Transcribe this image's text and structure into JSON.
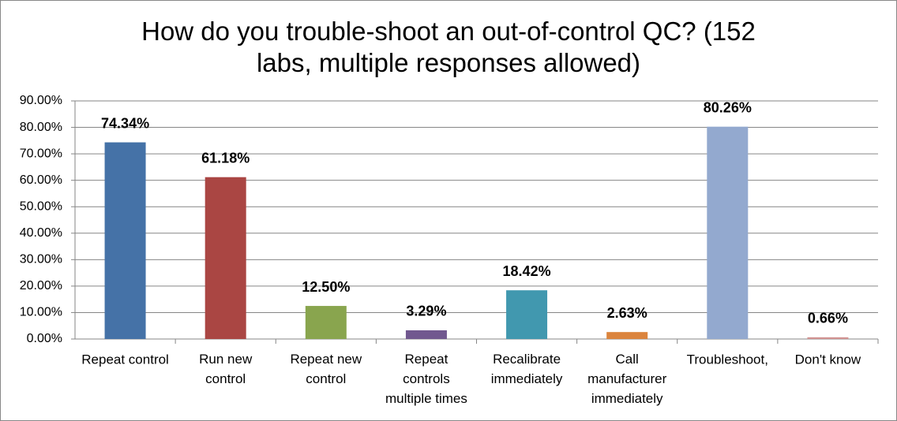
{
  "chart_data": {
    "type": "bar",
    "title": "How do you trouble-shoot an out-of-control QC?  (152\nlabs, multiple responses allowed)",
    "categories": [
      "Repeat control",
      "Run new\ncontrol",
      "Repeat new\ncontrol",
      "Repeat\ncontrols\nmultiple times",
      "Recalibrate\nimmediately",
      "Call\nmanufacturer\nimmediately",
      "Troubleshoot,",
      "Don't know"
    ],
    "values": [
      74.34,
      61.18,
      12.5,
      3.29,
      18.42,
      2.63,
      80.26,
      0.66
    ],
    "value_labels": [
      "74.34%",
      "61.18%",
      "12.50%",
      "3.29%",
      "18.42%",
      "2.63%",
      "80.26%",
      "0.66%"
    ],
    "colors": [
      "#4572a7",
      "#aa4643",
      "#89a54e",
      "#71588f",
      "#4198af",
      "#db843d",
      "#93a9cf",
      "#d19392"
    ],
    "ylim": [
      0,
      90
    ],
    "yticks": [
      {
        "value": 0,
        "label": "0.00%"
      },
      {
        "value": 10,
        "label": "10.00%"
      },
      {
        "value": 20,
        "label": "20.00%"
      },
      {
        "value": 30,
        "label": "30.00%"
      },
      {
        "value": 40,
        "label": "40.00%"
      },
      {
        "value": 50,
        "label": "50.00%"
      },
      {
        "value": 60,
        "label": "60.00%"
      },
      {
        "value": 70,
        "label": "70.00%"
      },
      {
        "value": 80,
        "label": "80.00%"
      },
      {
        "value": 90,
        "label": "90.00%"
      }
    ],
    "grid": true
  }
}
